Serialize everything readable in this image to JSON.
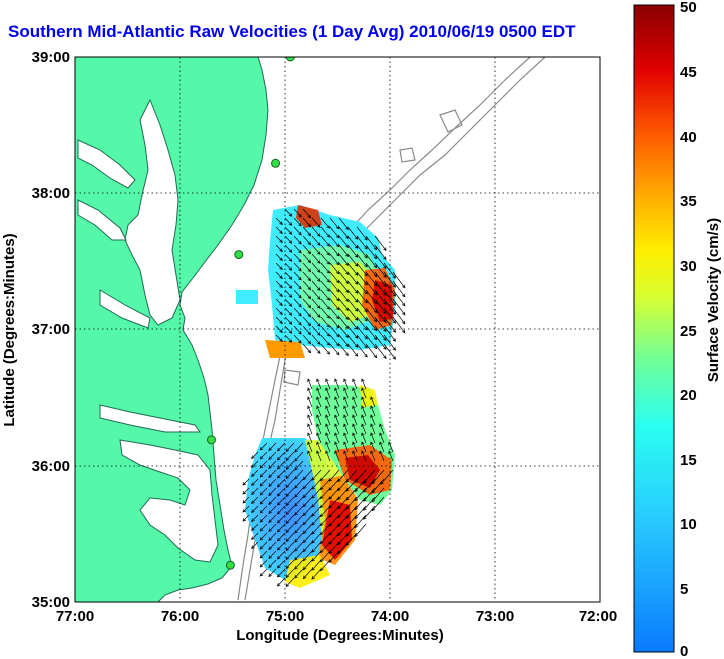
{
  "title": "Southern Mid-Atlantic Raw Velocities (1 Day Avg) 2010/06/19 0500 EDT",
  "map": {
    "xlabel": "Longitude (Degrees:Minutes)",
    "ylabel": "Latitude (Degrees:Minutes)",
    "x_ticks": [
      "77:00",
      "76:00",
      "75:00",
      "74:00",
      "73:00",
      "72:00"
    ],
    "y_ticks": [
      "39:00",
      "38:00",
      "37:00",
      "36:00",
      "35:00"
    ],
    "lon_range": [
      -77,
      -72
    ],
    "lat_range": [
      35,
      39
    ],
    "grid": true,
    "land_color": "#55f7a8",
    "coast_color": "#1f6b55",
    "bathymetry_color": "#8a8a8a"
  },
  "colorbar": {
    "label": "Surface Velocity (cm/s)",
    "ticks": [
      "50",
      "45",
      "40",
      "35",
      "30",
      "25",
      "20",
      "15",
      "10",
      "5",
      "0"
    ],
    "range": [
      0,
      50
    ],
    "colormap": "jet"
  },
  "stations": [
    {
      "lon": -74.95,
      "lat": 39.0
    },
    {
      "lon": -75.09,
      "lat": 38.22
    },
    {
      "lon": -75.44,
      "lat": 37.55
    },
    {
      "lon": -75.7,
      "lat": 36.19
    },
    {
      "lon": -75.52,
      "lat": 35.27
    }
  ]
}
